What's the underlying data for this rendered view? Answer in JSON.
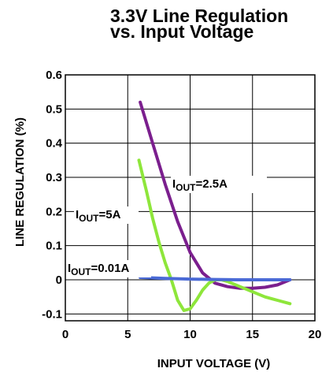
{
  "chart_data": {
    "type": "line",
    "title": [
      "3.3V Line Regulation",
      "vs. Input Voltage"
    ],
    "xlabel": "INPUT VOLTAGE (V)",
    "ylabel": "LINE REGULATION (%)",
    "xlim": [
      0,
      20
    ],
    "ylim": [
      -0.12,
      0.6
    ],
    "grid": true,
    "xticks": [
      "0",
      "5",
      "10",
      "15",
      "20"
    ],
    "yticks": [
      "-0.1",
      "0",
      "0.1",
      "0.2",
      "0.3",
      "0.4",
      "0.5",
      "0.6"
    ],
    "series": [
      {
        "name": "IOUT=2.5A",
        "label_main": "I",
        "label_sub": "OUT",
        "label_rest": "=2.5A",
        "color": "#7b1f8e",
        "x": [
          6.0,
          7.0,
          8.0,
          9.0,
          10.0,
          11.0,
          12.0,
          13.0,
          14.0,
          15.0,
          16.0,
          17.0,
          18.0
        ],
        "y": [
          0.52,
          0.4,
          0.28,
          0.17,
          0.08,
          0.02,
          -0.01,
          -0.02,
          -0.025,
          -0.025,
          -0.022,
          -0.015,
          0.0
        ]
      },
      {
        "name": "IOUT=5A",
        "label_main": "I",
        "label_sub": "OUT",
        "label_rest": "=5A",
        "color": "#8ee63b",
        "x": [
          5.9,
          6.5,
          7.0,
          7.5,
          8.0,
          8.5,
          9.0,
          9.5,
          10.0,
          10.5,
          11.0,
          11.5,
          12.0,
          12.5,
          13.0,
          14.0,
          15.0,
          16.0,
          17.0,
          18.0
        ],
        "y": [
          0.35,
          0.26,
          0.18,
          0.11,
          0.05,
          0.0,
          -0.06,
          -0.09,
          -0.085,
          -0.06,
          -0.03,
          -0.01,
          0.0,
          0.0,
          -0.005,
          -0.02,
          -0.035,
          -0.05,
          -0.06,
          -0.07
        ]
      },
      {
        "name": "IOUT=0.01A",
        "label_main": "I",
        "label_sub": "OUT",
        "label_rest": "=0.01A",
        "color": "#4a6ad6",
        "x": [
          6.0,
          8.0,
          10.0,
          12.0,
          14.0,
          16.0,
          18.0
        ],
        "y": [
          0.007,
          0.004,
          0.002,
          0.001,
          0.0,
          0.0,
          0.0
        ]
      }
    ]
  }
}
